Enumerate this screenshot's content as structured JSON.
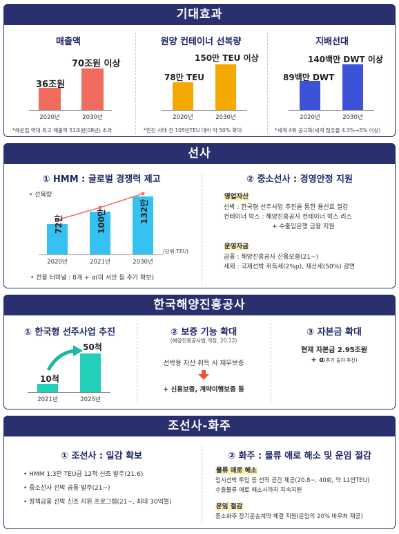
{
  "s1": {
    "title": "기대효과",
    "c1": {
      "title": "매출액",
      "v1": "36조원",
      "v2": "70조원 이상",
      "y1": "2020년",
      "y2": "2030년",
      "note": "*해운업 역대 최고 매출액 51조원(08년) 초과",
      "color": "#f26b5f"
    },
    "c2": {
      "title": "원양 컨테이너 선복량",
      "v1": "78만 TEU",
      "v2": "150만 TEU 이상",
      "y1": "2020년",
      "y2": "2030년",
      "note": "*한진 사태 전 105만TEU 대비 약 50% 확대",
      "color": "#f5a800"
    },
    "c3": {
      "title": "지배선대",
      "v1": "89백만 DWT",
      "v2": "140백만 DWT 이상",
      "y1": "2020년",
      "y2": "2030년",
      "note": "*세계 4위 공고화(세계 점유율 4.3%→5% 이상)",
      "color": "#3b52d9"
    }
  },
  "s2": {
    "title": "선사",
    "left": {
      "title": "① HMM : 글로벌 경쟁력 제고",
      "legend": "• 선복량",
      "bars": [
        "72만",
        "100만",
        "132만"
      ],
      "years": [
        "2020년",
        "2021년",
        "2030년"
      ],
      "unit": "(단위:TEU)",
      "footer": "• 전용 터미널 : 8개 + α(미 서안 등 추가 확보)"
    },
    "right": {
      "title": "② 중소선사 : 경영안정 지원",
      "h1": "영업자산",
      "l1": "선박 : 한국형 선주사업 추진을 통한 용선료 절감",
      "l2": "컨테이너 박스 : 해양진흥공사 컨테이너 박스 리스",
      "l3": "+ 수출입은행 금융 지원",
      "h2": "운영자금",
      "l4": "금융 : 해양진흥공사 신용보증(21~)",
      "l5": "세제 : 국제선박 취득세(2%p), 재산세(50%) 감면"
    }
  },
  "s3": {
    "title": "한국해양진흥공사",
    "c1": {
      "title": "① 한국형 선주사업 추진",
      "v1": "10척",
      "v2": "50척",
      "y1": "2021년",
      "y2": "2025년"
    },
    "c2": {
      "title": "② 보증 기능 확대",
      "sub": "(해양진흥공사법 개정, 20.12)",
      "l1": "선박용 자산 취득 시 채무보증",
      "l2": "+ 신용보증, 계약이행보증 등"
    },
    "c3": {
      "title": "③ 자본금 확대",
      "l1": "현재 자본금 2.95조원",
      "l2": "+ α",
      "l2s": "(추가 출자 추진)"
    }
  },
  "s4": {
    "title": "조선사-화주",
    "left": {
      "title": "① 조선사 : 일감 확보",
      "l1": "• HMM 1.3만 TEU급 12척 신조 발주(21.6)",
      "l2": "• 중소선사 선박 공동 발주(21~)",
      "l3": "• 정책금융 선박 신조 지원 프로그램(21~, 최대 30억불)"
    },
    "right": {
      "title": "② 화주 : 물류 애로 해소 및 운임 절감",
      "h1": "물류 애로 해소",
      "l1": "임시선박 투입 등 선적 공간 제공(20.8~, 40회, 약 11만TEU)",
      "l2": "수출물류 애로 해소시까지 지속지원",
      "h2": "운임 절감",
      "l3": "중소화주 장기운송계약 체결 지원(운임의 20% 바우처 제공)"
    }
  }
}
